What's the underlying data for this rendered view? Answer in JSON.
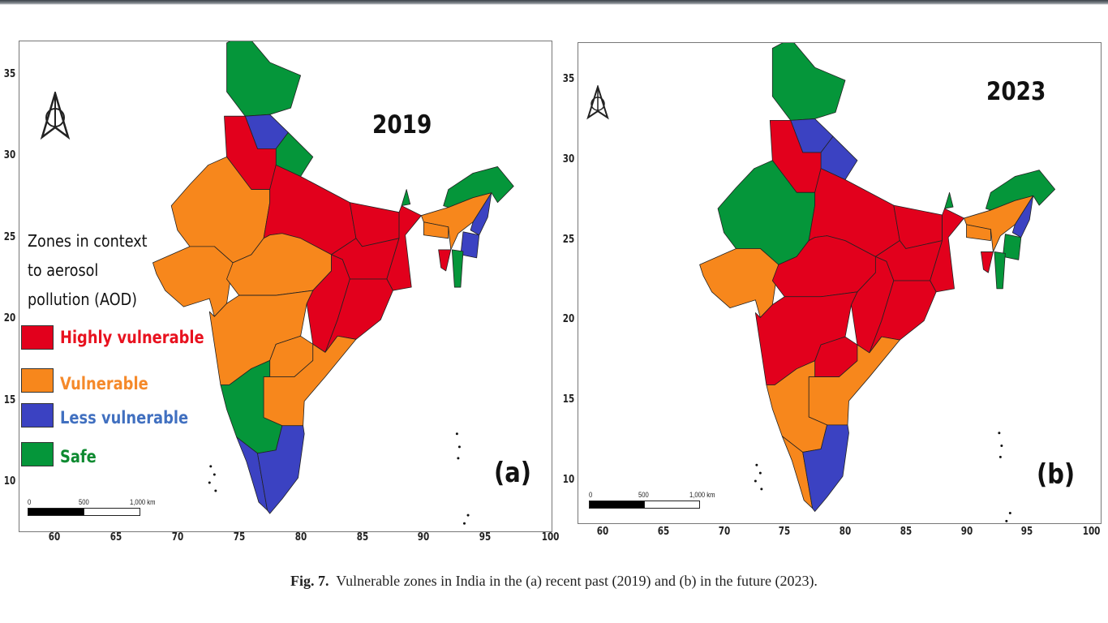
{
  "figure": {
    "caption_label": "Fig. 7.",
    "caption_text": "Vulnerable zones in India in the (a) recent past (2019) and (b) in the future (2023)."
  },
  "legend": {
    "title": "Zones in context to aerosol pollution (AOD)",
    "items": [
      {
        "key": "highly",
        "label": "Highly vulnerable",
        "color": "#e2001c",
        "text_color": "#e8121f"
      },
      {
        "key": "vulnerable",
        "label": "Vulnerable",
        "color": "#f7871c",
        "text_color": "#f5892a"
      },
      {
        "key": "less",
        "label": "Less vulnerable",
        "color": "#3b42c2",
        "text_color": "#4170c0"
      },
      {
        "key": "safe",
        "label": "Safe",
        "color": "#05963a",
        "text_color": "#0d8a30"
      }
    ]
  },
  "axes": {
    "lon_ticks": [
      "60",
      "65",
      "70",
      "75",
      "80",
      "85",
      "90",
      "95",
      "100"
    ],
    "lat_ticks": [
      "35",
      "30",
      "25",
      "20",
      "15",
      "10"
    ]
  },
  "scale_bar": {
    "labels": [
      "0",
      "500",
      "1,000 km"
    ]
  },
  "panels": [
    {
      "year": "2019",
      "label": "(a)",
      "zones": {
        "jk": "safe",
        "himachal": "less",
        "uttarakhand": "safe",
        "punjab_haryana": "highly",
        "rajasthan": "vulnerable",
        "gujarat": "vulnerable",
        "up": "highly",
        "mp": "vulnerable",
        "bihar": "highly",
        "jharkhand": "highly",
        "wb": "highly",
        "chhattisgarh": "highly",
        "odisha": "highly",
        "maharashtra": "vulnerable",
        "telangana": "vulnerable",
        "andhra": "vulnerable",
        "karnataka": "safe",
        "kerala": "less",
        "tn": "less",
        "sikkim": "safe",
        "assam": "vulnerable",
        "arunachal": "safe",
        "meghalaya": "vulnerable",
        "nagaland": "less",
        "manipur": "less",
        "mizoram": "safe",
        "tripura": "highly"
      }
    },
    {
      "year": "2023",
      "label": "(b)",
      "zones": {
        "jk": "safe",
        "himachal": "less",
        "uttarakhand": "less",
        "punjab_haryana": "highly",
        "rajasthan": "safe",
        "gujarat": "vulnerable",
        "up": "highly",
        "mp": "highly",
        "bihar": "highly",
        "jharkhand": "highly",
        "wb": "highly",
        "chhattisgarh": "highly",
        "odisha": "highly",
        "maharashtra": "highly",
        "telangana": "highly",
        "andhra": "vulnerable",
        "karnataka": "vulnerable",
        "kerala": "vulnerable",
        "tn": "less",
        "sikkim": "safe",
        "assam": "vulnerable",
        "arunachal": "safe",
        "meghalaya": "vulnerable",
        "nagaland": "less",
        "manipur": "safe",
        "mizoram": "safe",
        "tripura": "highly"
      }
    }
  ]
}
